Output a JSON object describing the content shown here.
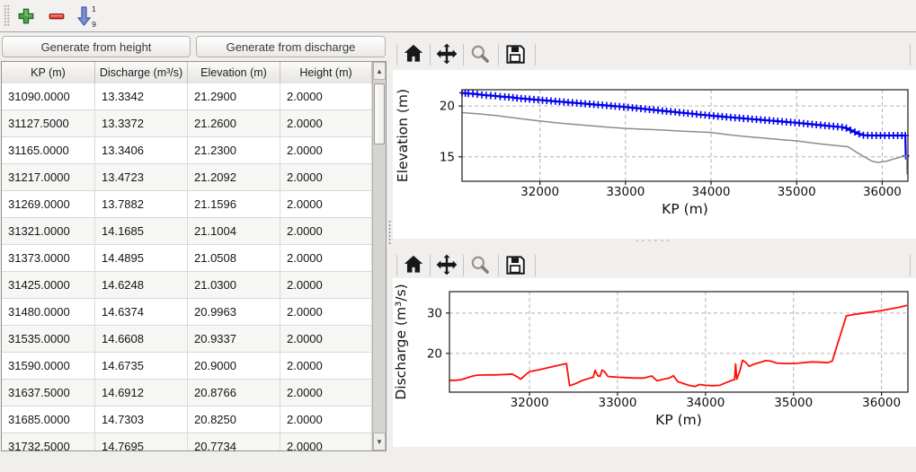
{
  "left_toolbar": {
    "icons": [
      {
        "name": "add-row",
        "glyph": "green-plus"
      },
      {
        "name": "remove-row",
        "glyph": "red-minus"
      },
      {
        "name": "sort-rows",
        "glyph": "blue-arrow-down-1-9",
        "top_digit": "1",
        "bottom_digit": "9"
      }
    ]
  },
  "buttons": {
    "generate_height": "Generate from height",
    "generate_discharge": "Generate from discharge"
  },
  "table": {
    "columns": [
      "KP (m)",
      "Discharge (m³/s)",
      "Elevation (m)",
      "Height (m)"
    ],
    "rows": [
      [
        "31090.0000",
        "13.3342",
        "21.2900",
        "2.0000"
      ],
      [
        "31127.5000",
        "13.3372",
        "21.2600",
        "2.0000"
      ],
      [
        "31165.0000",
        "13.3406",
        "21.2300",
        "2.0000"
      ],
      [
        "31217.0000",
        "13.4723",
        "21.2092",
        "2.0000"
      ],
      [
        "31269.0000",
        "13.7882",
        "21.1596",
        "2.0000"
      ],
      [
        "31321.0000",
        "14.1685",
        "21.1004",
        "2.0000"
      ],
      [
        "31373.0000",
        "14.4895",
        "21.0508",
        "2.0000"
      ],
      [
        "31425.0000",
        "14.6248",
        "21.0300",
        "2.0000"
      ],
      [
        "31480.0000",
        "14.6374",
        "20.9963",
        "2.0000"
      ],
      [
        "31535.0000",
        "14.6608",
        "20.9337",
        "2.0000"
      ],
      [
        "31590.0000",
        "14.6735",
        "20.9000",
        "2.0000"
      ],
      [
        "31637.5000",
        "14.6912",
        "20.8766",
        "2.0000"
      ],
      [
        "31685.0000",
        "14.7303",
        "20.8250",
        "2.0000"
      ],
      [
        "31732.5000",
        "14.7695",
        "20.7734",
        "2.0000"
      ]
    ]
  },
  "mpl_toolbar": {
    "icons": [
      {
        "name": "home"
      },
      {
        "name": "pan"
      },
      {
        "name": "zoom"
      },
      {
        "name": "save"
      }
    ]
  },
  "chart_data": [
    {
      "type": "line",
      "xlabel": "KP (m)",
      "ylabel": "Elevation (m)",
      "xlim": [
        31090,
        36300
      ],
      "ylim": [
        12.6,
        21.6
      ],
      "xticks": [
        32000,
        33000,
        34000,
        35000,
        36000
      ],
      "yticks": [
        15,
        20
      ],
      "grid": true,
      "series": [
        {
          "name": "water-elevation",
          "color": "#0000ee",
          "width": 2.2,
          "marker": "+",
          "points": [
            [
              31090,
              21.29
            ],
            [
              31127.5,
              21.26
            ],
            [
              31165,
              21.23
            ],
            [
              31217,
              21.21
            ],
            [
              31269,
              21.16
            ],
            [
              31321,
              21.1
            ],
            [
              31373,
              21.05
            ],
            [
              31425,
              21.03
            ],
            [
              31480,
              21.0
            ],
            [
              31535,
              20.93
            ],
            [
              31590,
              20.9
            ],
            [
              31637.5,
              20.88
            ],
            [
              31685,
              20.83
            ],
            [
              31732.5,
              20.77
            ],
            [
              31780,
              20.74
            ],
            [
              31830,
              20.71
            ],
            [
              31880,
              20.67
            ],
            [
              31930,
              20.64
            ],
            [
              31980,
              20.6
            ],
            [
              32030,
              20.57
            ],
            [
              32080,
              20.53
            ],
            [
              32130,
              20.5
            ],
            [
              32180,
              20.46
            ],
            [
              32230,
              20.43
            ],
            [
              32280,
              20.4
            ],
            [
              32330,
              20.36
            ],
            [
              32380,
              20.33
            ],
            [
              32430,
              20.29
            ],
            [
              32480,
              20.26
            ],
            [
              32530,
              20.22
            ],
            [
              32580,
              20.19
            ],
            [
              32630,
              20.15
            ],
            [
              32680,
              20.12
            ],
            [
              32730,
              20.09
            ],
            [
              32780,
              20.05
            ],
            [
              32830,
              20.02
            ],
            [
              32880,
              19.98
            ],
            [
              32930,
              19.95
            ],
            [
              32980,
              19.91
            ],
            [
              33030,
              19.87
            ],
            [
              33080,
              19.83
            ],
            [
              33130,
              19.79
            ],
            [
              33180,
              19.75
            ],
            [
              33230,
              19.7
            ],
            [
              33280,
              19.66
            ],
            [
              33330,
              19.62
            ],
            [
              33380,
              19.58
            ],
            [
              33430,
              19.53
            ],
            [
              33480,
              19.49
            ],
            [
              33530,
              19.45
            ],
            [
              33580,
              19.41
            ],
            [
              33630,
              19.36
            ],
            [
              33680,
              19.32
            ],
            [
              33730,
              19.28
            ],
            [
              33780,
              19.24
            ],
            [
              33830,
              19.19
            ],
            [
              33880,
              19.15
            ],
            [
              33930,
              19.11
            ],
            [
              33980,
              19.07
            ],
            [
              34030,
              19.03
            ],
            [
              34080,
              18.99
            ],
            [
              34130,
              18.96
            ],
            [
              34180,
              18.92
            ],
            [
              34230,
              18.89
            ],
            [
              34280,
              18.85
            ],
            [
              34330,
              18.82
            ],
            [
              34380,
              18.78
            ],
            [
              34430,
              18.75
            ],
            [
              34480,
              18.71
            ],
            [
              34530,
              18.68
            ],
            [
              34580,
              18.64
            ],
            [
              34630,
              18.61
            ],
            [
              34680,
              18.57
            ],
            [
              34730,
              18.54
            ],
            [
              34780,
              18.5
            ],
            [
              34830,
              18.47
            ],
            [
              34880,
              18.43
            ],
            [
              34930,
              18.4
            ],
            [
              34980,
              18.36
            ],
            [
              35030,
              18.33
            ],
            [
              35080,
              18.28
            ],
            [
              35130,
              18.24
            ],
            [
              35180,
              18.2
            ],
            [
              35230,
              18.16
            ],
            [
              35280,
              18.12
            ],
            [
              35330,
              18.08
            ],
            [
              35380,
              18.04
            ],
            [
              35430,
              18.0
            ],
            [
              35480,
              17.96
            ],
            [
              35530,
              17.92
            ],
            [
              35580,
              17.82
            ],
            [
              35630,
              17.63
            ],
            [
              35680,
              17.44
            ],
            [
              35730,
              17.26
            ],
            [
              35780,
              17.13
            ],
            [
              35830,
              17.11
            ],
            [
              35880,
              17.1
            ],
            [
              35930,
              17.1
            ],
            [
              35980,
              17.1
            ],
            [
              36030,
              17.1
            ],
            [
              36080,
              17.1
            ],
            [
              36130,
              17.1
            ],
            [
              36180,
              17.1
            ],
            [
              36230,
              17.1
            ],
            [
              36270,
              17.1
            ],
            [
              36275,
              15.1
            ]
          ]
        },
        {
          "name": "bed-elevation",
          "color": "#8c8c8c",
          "width": 1.5,
          "marker": null,
          "points": [
            [
              31090,
              19.35
            ],
            [
              31300,
              19.22
            ],
            [
              31500,
              19.05
            ],
            [
              31750,
              18.78
            ],
            [
              32000,
              18.52
            ],
            [
              32250,
              18.3
            ],
            [
              32500,
              18.12
            ],
            [
              32750,
              17.95
            ],
            [
              33000,
              17.8
            ],
            [
              33200,
              17.72
            ],
            [
              33400,
              17.65
            ],
            [
              33600,
              17.55
            ],
            [
              33800,
              17.47
            ],
            [
              34000,
              17.4
            ],
            [
              34200,
              17.18
            ],
            [
              34400,
              17.0
            ],
            [
              34600,
              16.85
            ],
            [
              34800,
              16.7
            ],
            [
              35000,
              16.57
            ],
            [
              35150,
              16.4
            ],
            [
              35300,
              16.25
            ],
            [
              35450,
              16.12
            ],
            [
              35600,
              16.0
            ],
            [
              35700,
              15.45
            ],
            [
              35800,
              14.95
            ],
            [
              35880,
              14.58
            ],
            [
              35950,
              14.45
            ],
            [
              36050,
              14.58
            ],
            [
              36150,
              14.82
            ],
            [
              36250,
              15.05
            ],
            [
              36285,
              15.12
            ],
            [
              36290,
              13.3
            ]
          ]
        }
      ]
    },
    {
      "type": "line",
      "xlabel": "KP (m)",
      "ylabel": "Discharge (m³/s)",
      "xlim": [
        31090,
        36300
      ],
      "ylim": [
        10.4,
        35.3
      ],
      "xticks": [
        32000,
        33000,
        34000,
        35000,
        36000
      ],
      "yticks": [
        20,
        30
      ],
      "grid": true,
      "series": [
        {
          "name": "discharge",
          "color": "#ff0f08",
          "width": 1.8,
          "marker": null,
          "points": [
            [
              31090,
              13.33
            ],
            [
              31127.5,
              13.34
            ],
            [
              31165,
              13.34
            ],
            [
              31217,
              13.47
            ],
            [
              31269,
              13.79
            ],
            [
              31321,
              14.17
            ],
            [
              31373,
              14.49
            ],
            [
              31425,
              14.62
            ],
            [
              31480,
              14.64
            ],
            [
              31535,
              14.66
            ],
            [
              31590,
              14.67
            ],
            [
              31637.5,
              14.69
            ],
            [
              31685,
              14.73
            ],
            [
              31732.5,
              14.77
            ],
            [
              31800,
              14.9
            ],
            [
              31860,
              14.2
            ],
            [
              31900,
              13.6
            ],
            [
              31950,
              14.6
            ],
            [
              32000,
              15.5
            ],
            [
              32100,
              15.9
            ],
            [
              32200,
              16.4
            ],
            [
              32300,
              16.9
            ],
            [
              32420,
              17.5
            ],
            [
              32455,
              12.0
            ],
            [
              32520,
              12.5
            ],
            [
              32600,
              13.3
            ],
            [
              32690,
              13.9
            ],
            [
              32725,
              14.1
            ],
            [
              32745,
              15.8
            ],
            [
              32775,
              14.5
            ],
            [
              32800,
              14.3
            ],
            [
              32825,
              15.9
            ],
            [
              32855,
              15.4
            ],
            [
              32890,
              14.3
            ],
            [
              33000,
              14.1
            ],
            [
              33100,
              14.0
            ],
            [
              33200,
              13.9
            ],
            [
              33300,
              13.9
            ],
            [
              33390,
              14.4
            ],
            [
              33450,
              13.2
            ],
            [
              33520,
              13.6
            ],
            [
              33590,
              13.9
            ],
            [
              33635,
              14.5
            ],
            [
              33685,
              13.0
            ],
            [
              33740,
              12.6
            ],
            [
              33810,
              12.1
            ],
            [
              33880,
              11.8
            ],
            [
              33930,
              12.3
            ],
            [
              34000,
              12.1
            ],
            [
              34080,
              12.0
            ],
            [
              34160,
              12.1
            ],
            [
              34240,
              12.8
            ],
            [
              34310,
              13.4
            ],
            [
              34330,
              13.5
            ],
            [
              34342,
              17.4
            ],
            [
              34355,
              13.6
            ],
            [
              34390,
              15.6
            ],
            [
              34420,
              18.3
            ],
            [
              34455,
              17.8
            ],
            [
              34495,
              16.8
            ],
            [
              34560,
              17.4
            ],
            [
              34625,
              17.8
            ],
            [
              34685,
              18.2
            ],
            [
              34740,
              18.1
            ],
            [
              34810,
              17.6
            ],
            [
              34910,
              17.5
            ],
            [
              35010,
              17.5
            ],
            [
              35110,
              17.7
            ],
            [
              35210,
              17.9
            ],
            [
              35310,
              17.8
            ],
            [
              35390,
              17.7
            ],
            [
              35440,
              18.1
            ],
            [
              35510,
              23.0
            ],
            [
              35600,
              29.3
            ],
            [
              35700,
              29.7
            ],
            [
              35800,
              30.0
            ],
            [
              35900,
              30.3
            ],
            [
              36000,
              30.6
            ],
            [
              36100,
              31.0
            ],
            [
              36200,
              31.4
            ],
            [
              36290,
              31.9
            ]
          ]
        }
      ]
    }
  ]
}
